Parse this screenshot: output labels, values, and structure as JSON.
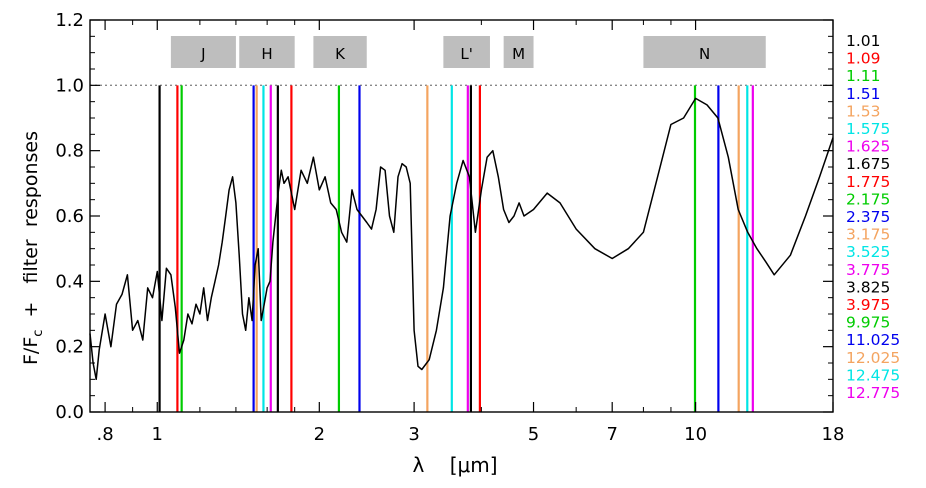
{
  "chart_data": {
    "type": "line",
    "title": "",
    "xlabel": "λ    [μm]",
    "ylabel_main": "F/F",
    "ylabel_sub": "c",
    "ylabel_rest": "  +   filter  responses",
    "x_scale": "log",
    "xlim": [
      0.75,
      18
    ],
    "ylim": [
      0,
      1.2
    ],
    "x_ticks": [
      {
        "value": 0.8,
        "label": ".8"
      },
      {
        "value": 1,
        "label": "1"
      },
      {
        "value": 2,
        "label": "2"
      },
      {
        "value": 3,
        "label": "3"
      },
      {
        "value": 5,
        "label": "5"
      },
      {
        "value": 7,
        "label": "7"
      },
      {
        "value": 10,
        "label": "10"
      },
      {
        "value": 18,
        "label": "18"
      }
    ],
    "x_minor_ticks": [
      0.9,
      1.2,
      1.4,
      1.6,
      1.8,
      4,
      6,
      8,
      9
    ],
    "y_ticks": [
      {
        "value": 0.0,
        "label": "0.0"
      },
      {
        "value": 0.2,
        "label": "0.2"
      },
      {
        "value": 0.4,
        "label": "0.4"
      },
      {
        "value": 0.6,
        "label": "0.6"
      },
      {
        "value": 0.8,
        "label": "0.8"
      },
      {
        "value": 1.0,
        "label": "1.0"
      },
      {
        "value": 1.2,
        "label": "1.2"
      }
    ],
    "reference_line": {
      "y": 1.0,
      "style": "dotted",
      "color": "#888888"
    },
    "bands": [
      {
        "label": "J",
        "x0": 1.06,
        "x1": 1.4
      },
      {
        "label": "H",
        "x0": 1.42,
        "x1": 1.8
      },
      {
        "label": "K",
        "x0": 1.95,
        "x1": 2.45
      },
      {
        "label": "L'",
        "x0": 3.4,
        "x1": 4.15
      },
      {
        "label": "M",
        "x0": 4.4,
        "x1": 5.0
      },
      {
        "label": "N",
        "x0": 8.0,
        "x1": 13.5
      }
    ],
    "filters": [
      {
        "label": "1.01",
        "x": 1.01,
        "color": "#000000"
      },
      {
        "label": "1.09",
        "x": 1.09,
        "color": "#ff0000"
      },
      {
        "label": "1.11",
        "x": 1.11,
        "color": "#00cc00"
      },
      {
        "label": "1.51",
        "x": 1.51,
        "color": "#0000ee"
      },
      {
        "label": "1.53",
        "x": 1.53,
        "color": "#f4a460"
      },
      {
        "label": "1.575",
        "x": 1.575,
        "color": "#00e5e5"
      },
      {
        "label": "1.625",
        "x": 1.625,
        "color": "#ee00ee"
      },
      {
        "label": "1.675",
        "x": 1.675,
        "color": "#000000"
      },
      {
        "label": "1.775",
        "x": 1.775,
        "color": "#ff0000"
      },
      {
        "label": "2.175",
        "x": 2.175,
        "color": "#00cc00"
      },
      {
        "label": "2.375",
        "x": 2.375,
        "color": "#0000ee"
      },
      {
        "label": "3.175",
        "x": 3.175,
        "color": "#f4a460"
      },
      {
        "label": "3.525",
        "x": 3.525,
        "color": "#00e5e5"
      },
      {
        "label": "3.775",
        "x": 3.775,
        "color": "#ee00ee"
      },
      {
        "label": "3.825",
        "x": 3.825,
        "color": "#000000"
      },
      {
        "label": "3.975",
        "x": 3.975,
        "color": "#ff0000"
      },
      {
        "label": "9.975",
        "x": 9.975,
        "color": "#00cc00"
      },
      {
        "label": "11.025",
        "x": 11.025,
        "color": "#0000ee"
      },
      {
        "label": "12.025",
        "x": 12.025,
        "color": "#f4a460"
      },
      {
        "label": "12.475",
        "x": 12.475,
        "color": "#00e5e5"
      },
      {
        "label": "12.775",
        "x": 12.775,
        "color": "#ee00ee"
      }
    ],
    "spectrum": {
      "color": "#000000",
      "x": [
        0.75,
        0.76,
        0.77,
        0.78,
        0.8,
        0.82,
        0.84,
        0.86,
        0.88,
        0.9,
        0.92,
        0.94,
        0.96,
        0.98,
        1.0,
        1.02,
        1.04,
        1.06,
        1.08,
        1.1,
        1.12,
        1.14,
        1.16,
        1.18,
        1.2,
        1.22,
        1.24,
        1.26,
        1.28,
        1.3,
        1.32,
        1.34,
        1.36,
        1.38,
        1.4,
        1.42,
        1.44,
        1.46,
        1.48,
        1.5,
        1.52,
        1.54,
        1.56,
        1.58,
        1.6,
        1.62,
        1.64,
        1.66,
        1.68,
        1.7,
        1.72,
        1.75,
        1.78,
        1.8,
        1.85,
        1.9,
        1.95,
        2.0,
        2.05,
        2.1,
        2.15,
        2.2,
        2.25,
        2.3,
        2.35,
        2.4,
        2.45,
        2.5,
        2.55,
        2.6,
        2.65,
        2.7,
        2.75,
        2.8,
        2.85,
        2.9,
        2.95,
        3.0,
        3.05,
        3.1,
        3.2,
        3.3,
        3.4,
        3.5,
        3.6,
        3.7,
        3.8,
        3.9,
        4.0,
        4.1,
        4.2,
        4.3,
        4.4,
        4.5,
        4.6,
        4.7,
        4.8,
        5.0,
        5.3,
        5.6,
        6.0,
        6.5,
        7.0,
        7.5,
        8.0,
        8.5,
        9.0,
        9.5,
        10.0,
        10.5,
        11.0,
        11.5,
        12.0,
        12.5,
        13.0,
        13.5,
        14.0,
        15.0,
        16.0,
        17.0,
        18.0
      ],
      "y": [
        0.24,
        0.15,
        0.1,
        0.19,
        0.3,
        0.2,
        0.33,
        0.36,
        0.42,
        0.25,
        0.28,
        0.22,
        0.38,
        0.35,
        0.43,
        0.28,
        0.44,
        0.42,
        0.32,
        0.18,
        0.22,
        0.3,
        0.27,
        0.33,
        0.3,
        0.38,
        0.28,
        0.35,
        0.4,
        0.45,
        0.52,
        0.6,
        0.68,
        0.72,
        0.64,
        0.48,
        0.3,
        0.25,
        0.35,
        0.28,
        0.45,
        0.5,
        0.28,
        0.33,
        0.38,
        0.4,
        0.52,
        0.6,
        0.68,
        0.74,
        0.7,
        0.72,
        0.66,
        0.62,
        0.74,
        0.7,
        0.78,
        0.68,
        0.72,
        0.64,
        0.62,
        0.55,
        0.52,
        0.68,
        0.62,
        0.6,
        0.58,
        0.56,
        0.62,
        0.75,
        0.74,
        0.6,
        0.55,
        0.72,
        0.76,
        0.75,
        0.7,
        0.25,
        0.14,
        0.13,
        0.16,
        0.25,
        0.38,
        0.6,
        0.7,
        0.77,
        0.72,
        0.55,
        0.68,
        0.78,
        0.8,
        0.72,
        0.62,
        0.58,
        0.6,
        0.64,
        0.6,
        0.62,
        0.67,
        0.64,
        0.56,
        0.5,
        0.47,
        0.5,
        0.55,
        0.72,
        0.88,
        0.9,
        0.96,
        0.94,
        0.9,
        0.78,
        0.62,
        0.55,
        0.5,
        0.46,
        0.42,
        0.48,
        0.6,
        0.72,
        0.84
      ]
    }
  }
}
